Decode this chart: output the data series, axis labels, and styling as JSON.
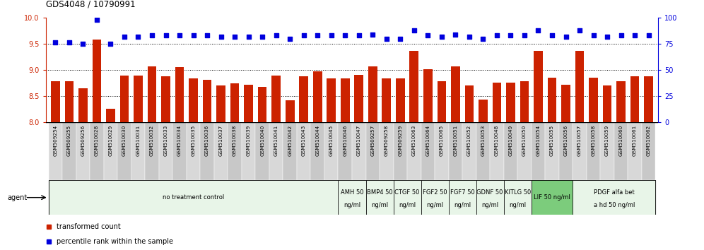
{
  "title": "GDS4048 / 10790991",
  "samples": [
    "GSM509254",
    "GSM509255",
    "GSM509256",
    "GSM510028",
    "GSM510029",
    "GSM510030",
    "GSM510031",
    "GSM510032",
    "GSM510033",
    "GSM510034",
    "GSM510035",
    "GSM510036",
    "GSM510037",
    "GSM510038",
    "GSM510039",
    "GSM510040",
    "GSM510041",
    "GSM510042",
    "GSM510043",
    "GSM510044",
    "GSM510045",
    "GSM510046",
    "GSM510047",
    "GSM509257",
    "GSM509258",
    "GSM509259",
    "GSM510063",
    "GSM510064",
    "GSM510065",
    "GSM510051",
    "GSM510052",
    "GSM510053",
    "GSM510048",
    "GSM510049",
    "GSM510050",
    "GSM510054",
    "GSM510055",
    "GSM510056",
    "GSM510057",
    "GSM510058",
    "GSM510059",
    "GSM510060",
    "GSM510061",
    "GSM510062"
  ],
  "bar_values": [
    8.78,
    8.78,
    8.65,
    9.58,
    8.26,
    8.9,
    8.9,
    9.07,
    8.88,
    9.06,
    8.84,
    8.82,
    8.7,
    8.75,
    8.72,
    8.68,
    8.9,
    8.42,
    8.88,
    8.98,
    8.84,
    8.84,
    8.91,
    9.07,
    8.84,
    8.84,
    9.36,
    9.01,
    8.78,
    9.07,
    8.71,
    8.43,
    8.76,
    8.76,
    8.79,
    9.36,
    8.86,
    8.72,
    9.36,
    8.86,
    8.71,
    8.78,
    8.88,
    8.88
  ],
  "percentile_values": [
    76,
    76,
    75,
    98,
    75,
    82,
    82,
    83,
    83,
    83,
    83,
    83,
    82,
    82,
    82,
    82,
    83,
    80,
    83,
    83,
    83,
    83,
    83,
    84,
    80,
    80,
    88,
    83,
    82,
    84,
    82,
    80,
    83,
    83,
    83,
    88,
    83,
    82,
    88,
    83,
    82,
    83,
    83,
    83
  ],
  "agent_groups": [
    {
      "label": "no treatment control",
      "start": 0,
      "end": 21,
      "color": "#e8f5e8"
    },
    {
      "label": "AMH 50\nng/ml",
      "start": 21,
      "end": 23,
      "color": "#e8f5e8"
    },
    {
      "label": "BMP4 50\nng/ml",
      "start": 23,
      "end": 25,
      "color": "#e8f5e8"
    },
    {
      "label": "CTGF 50\nng/ml",
      "start": 25,
      "end": 27,
      "color": "#e8f5e8"
    },
    {
      "label": "FGF2 50\nng/ml",
      "start": 27,
      "end": 29,
      "color": "#e8f5e8"
    },
    {
      "label": "FGF7 50\nng/ml",
      "start": 29,
      "end": 31,
      "color": "#e8f5e8"
    },
    {
      "label": "GDNF 50\nng/ml",
      "start": 31,
      "end": 33,
      "color": "#e8f5e8"
    },
    {
      "label": "KITLG 50\nng/ml",
      "start": 33,
      "end": 35,
      "color": "#e8f5e8"
    },
    {
      "label": "LIF 50 ng/ml",
      "start": 35,
      "end": 38,
      "color": "#7ccc7c"
    },
    {
      "label": "PDGF alfa bet\na hd 50 ng/ml",
      "start": 38,
      "end": 44,
      "color": "#e8f5e8"
    }
  ],
  "bar_color": "#cc2200",
  "dot_color": "#0000dd",
  "ylim_left": [
    8.0,
    10.0
  ],
  "ylim_right": [
    0,
    100
  ],
  "yticks_left": [
    8.0,
    8.5,
    9.0,
    9.5,
    10.0
  ],
  "yticks_right": [
    0,
    25,
    50,
    75,
    100
  ],
  "background_color": "#ffffff"
}
